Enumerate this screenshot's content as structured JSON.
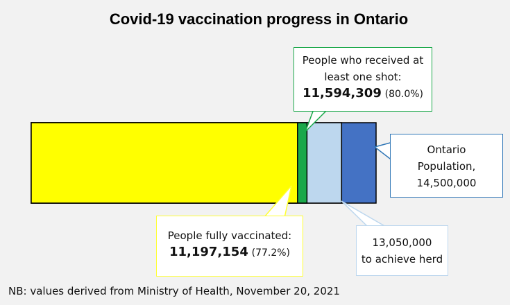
{
  "chart_data": {
    "type": "bar",
    "title": "Covid-19 vaccination progress in Ontario",
    "series": [
      {
        "name": "People fully vaccinated:",
        "color": "#ffff00",
        "values": [
          11197154
        ],
        "value_labels": [
          "11,197,154"
        ],
        "share_labels": [
          "(77.2%)"
        ]
      },
      {
        "name": "People who received at least one shot:",
        "color": "#1aa84a",
        "values": [
          11594309
        ],
        "value_labels": [
          "11,594,309"
        ],
        "share_labels": [
          "(80.0%)"
        ]
      },
      {
        "name": "to achieve herd",
        "color": "#bdd7ee",
        "values": [
          13050000
        ],
        "value_labels": [
          "13,050,000"
        ]
      },
      {
        "name": "Ontario Population,",
        "color": "#4472c4",
        "values": [
          14500000
        ],
        "value_labels": [
          "14,500,000"
        ]
      }
    ],
    "note": "NB: values derived from Ministry of Health, November 20, 2021"
  }
}
